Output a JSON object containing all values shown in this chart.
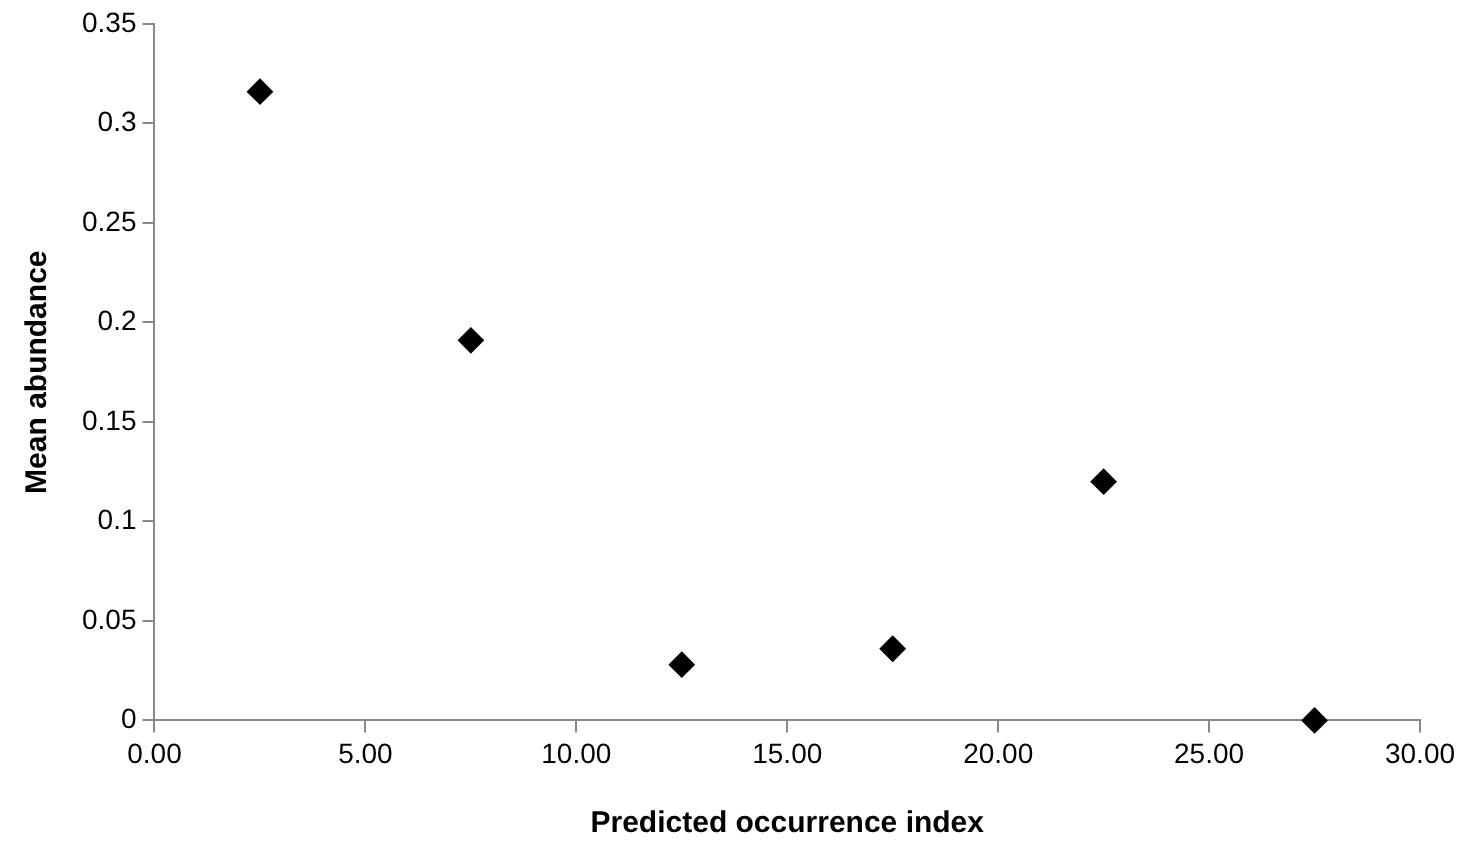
{
  "chart_data": {
    "type": "scatter",
    "xlabel": "Predicted occurrence index",
    "ylabel": "Mean abundance",
    "x": [
      2.5,
      7.5,
      12.5,
      17.5,
      22.5,
      27.5
    ],
    "series": [
      {
        "color": "#000000",
        "values": [
          0.316,
          0.191,
          0.028,
          0.036,
          0.12,
          0
        ]
      }
    ],
    "xlim": [
      0,
      30
    ],
    "xticks": [
      {
        "value": 0,
        "label": "0.00"
      },
      {
        "value": 5,
        "label": "5.00"
      },
      {
        "value": 10,
        "label": "10.00"
      },
      {
        "value": 15,
        "label": "15.00"
      },
      {
        "value": 20,
        "label": "20.00"
      },
      {
        "value": 25,
        "label": "25.00"
      },
      {
        "value": 30,
        "label": "30.00"
      }
    ],
    "ylim": [
      0,
      0.35
    ],
    "yticks": [
      0,
      0.05,
      0.1,
      0.15,
      0.2,
      0.25,
      0.3,
      0.35
    ],
    "grid": false,
    "legend": false,
    "marker": "diamond"
  }
}
